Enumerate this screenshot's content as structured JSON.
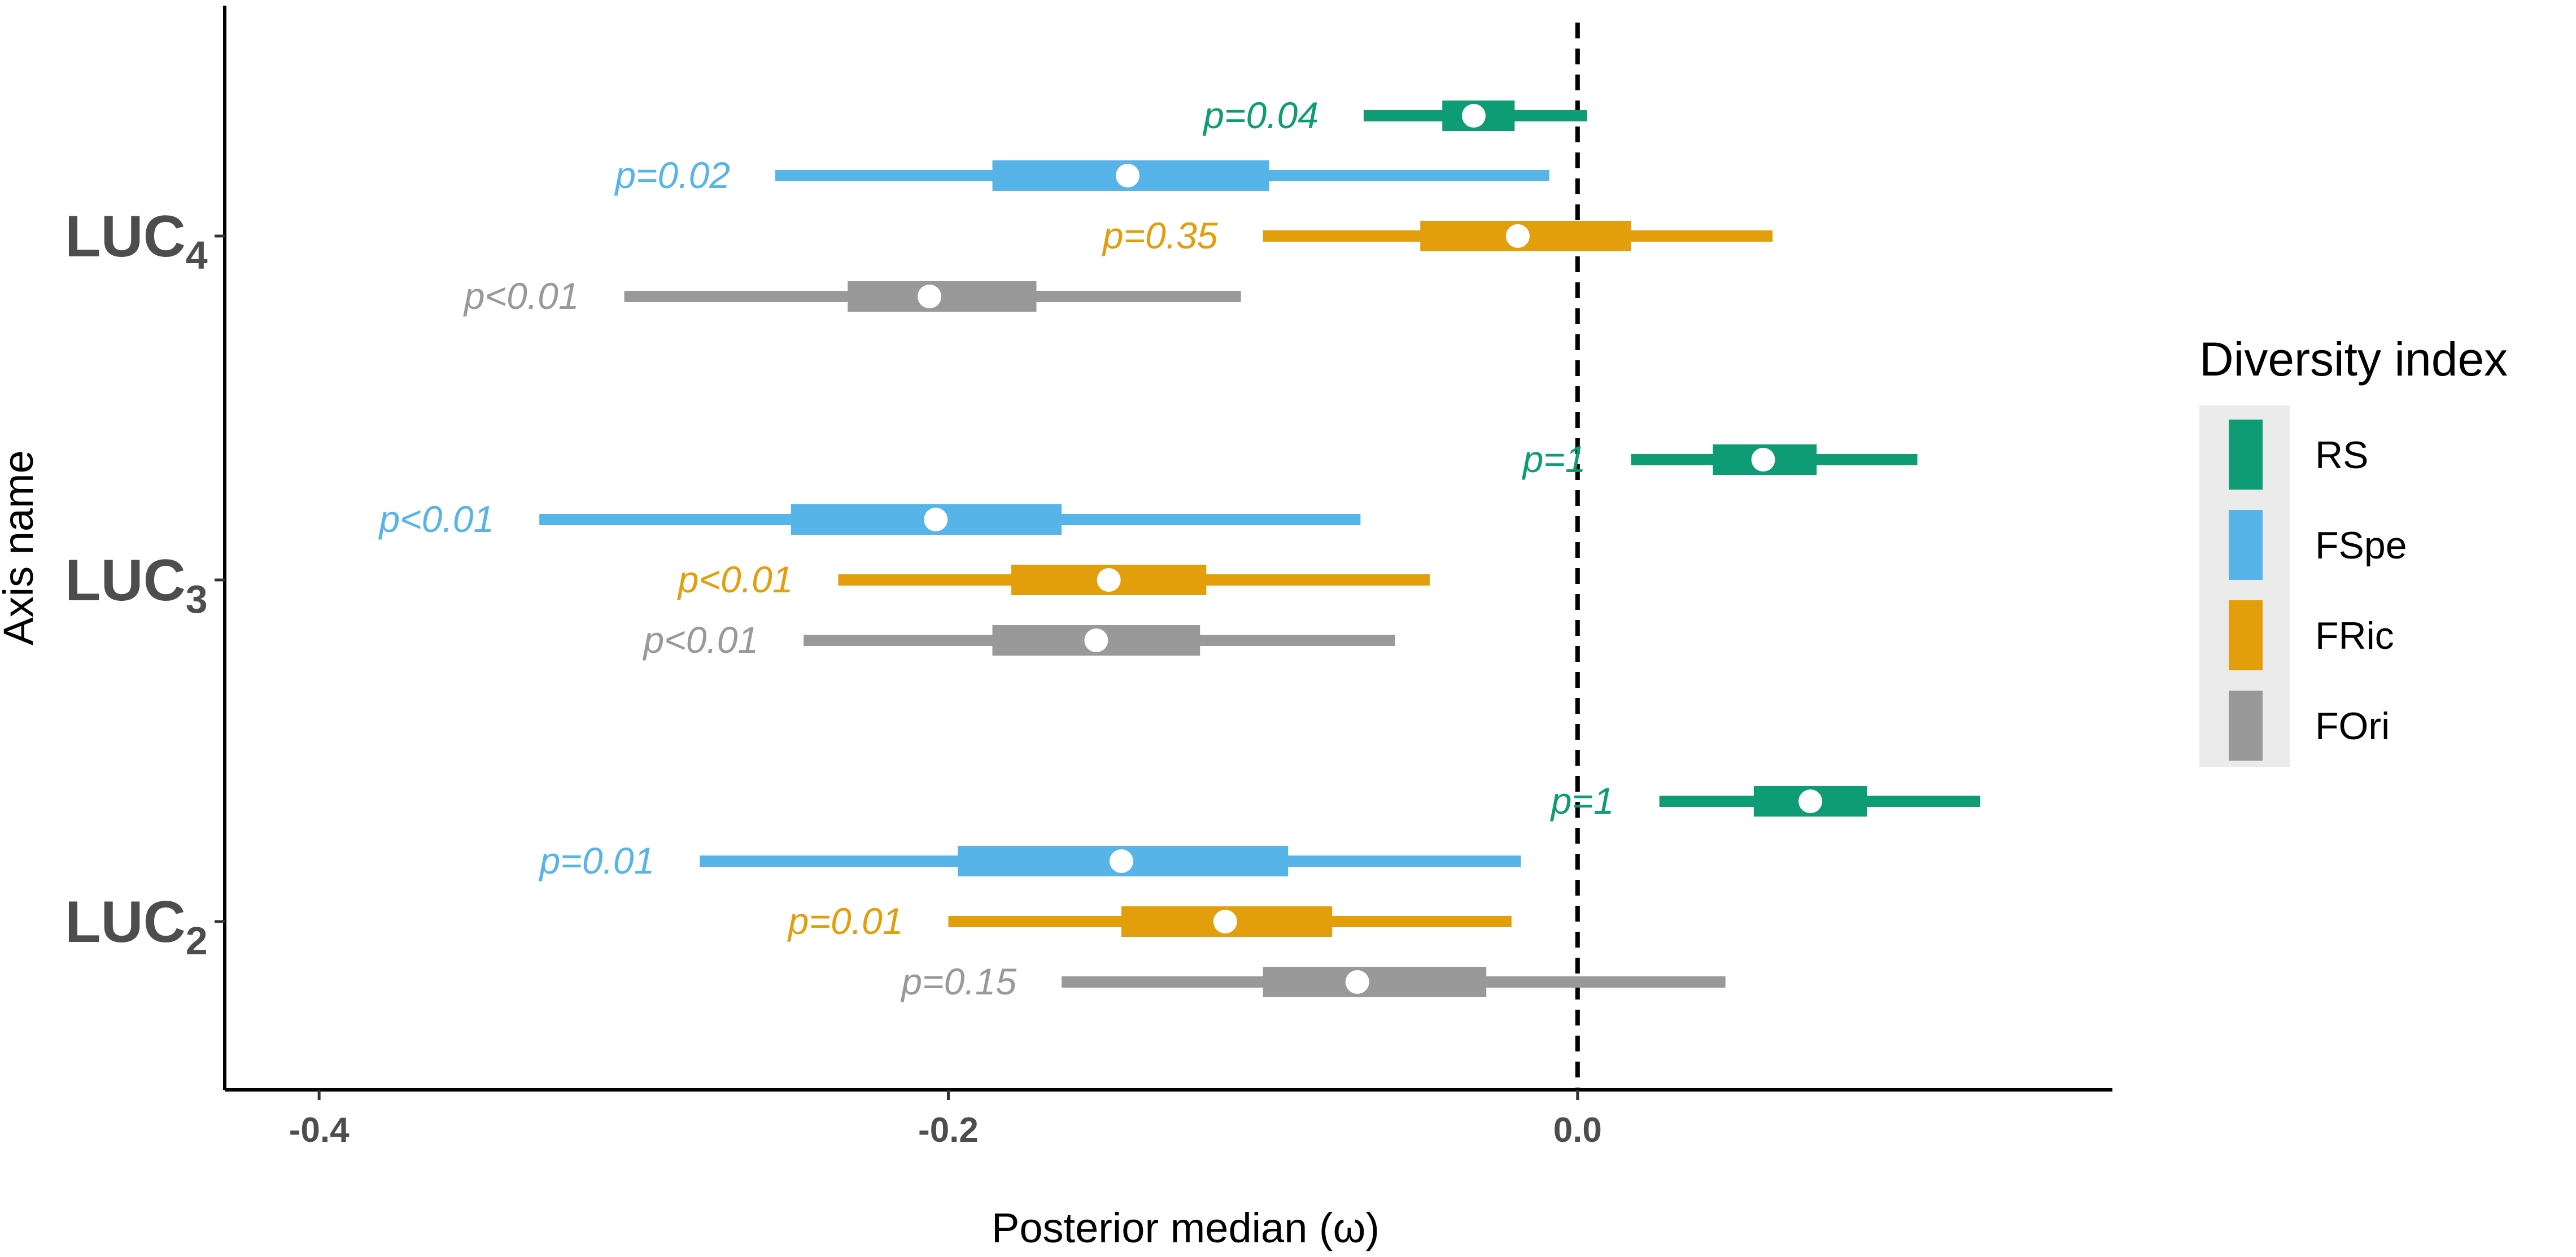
{
  "chart_data": {
    "type": "interval",
    "title": "",
    "xlabel": "Posterior median (ω)",
    "ylabel": "Axis name",
    "xlim": [
      -0.43,
      0.17
    ],
    "xticks": [
      -0.4,
      -0.2,
      0.0
    ],
    "xtick_labels": [
      "-0.4",
      "-0.2",
      "0.0"
    ],
    "reference_line": 0.0,
    "grid": false,
    "legend": {
      "title": "Diversity index",
      "placement": "right",
      "entries": [
        {
          "name": "RS",
          "color": "#0e9c75"
        },
        {
          "name": "FSpe",
          "color": "#56b4e9"
        },
        {
          "name": "FRic",
          "color": "#e39e0b"
        },
        {
          "name": "FOri",
          "color": "#999999"
        }
      ]
    },
    "categories": [
      {
        "name": "LUC",
        "subscript": "4"
      },
      {
        "name": "LUC",
        "subscript": "3"
      },
      {
        "name": "LUC",
        "subscript": "2"
      }
    ],
    "series": [
      {
        "name": "RS",
        "color": "#0e9c75",
        "data": [
          {
            "category": 0,
            "median": -0.033,
            "inner": [
              -0.043,
              -0.02
            ],
            "outer": [
              -0.068,
              0.003
            ],
            "p_label": "p=0.04"
          },
          {
            "category": 1,
            "median": 0.059,
            "inner": [
              0.043,
              0.076
            ],
            "outer": [
              0.017,
              0.108
            ],
            "p_label": "p=1"
          },
          {
            "category": 2,
            "median": 0.074,
            "inner": [
              0.056,
              0.092
            ],
            "outer": [
              0.026,
              0.128
            ],
            "p_label": "p=1"
          }
        ]
      },
      {
        "name": "FSpe",
        "color": "#56b4e9",
        "data": [
          {
            "category": 0,
            "median": -0.143,
            "inner": [
              -0.186,
              -0.098
            ],
            "outer": [
              -0.255,
              -0.009
            ],
            "p_label": "p=0.02"
          },
          {
            "category": 1,
            "median": -0.204,
            "inner": [
              -0.25,
              -0.164
            ],
            "outer": [
              -0.33,
              -0.069
            ],
            "p_label": "p<0.01"
          },
          {
            "category": 2,
            "median": -0.145,
            "inner": [
              -0.197,
              -0.092
            ],
            "outer": [
              -0.279,
              -0.018
            ],
            "p_label": "p=0.01"
          }
        ]
      },
      {
        "name": "FRic",
        "color": "#e39e0b",
        "data": [
          {
            "category": 0,
            "median": -0.019,
            "inner": [
              -0.05,
              0.017
            ],
            "outer": [
              -0.1,
              0.062
            ],
            "p_label": "p=0.35"
          },
          {
            "category": 1,
            "median": -0.149,
            "inner": [
              -0.18,
              -0.118
            ],
            "outer": [
              -0.235,
              -0.047
            ],
            "p_label": "p<0.01"
          },
          {
            "category": 2,
            "median": -0.112,
            "inner": [
              -0.145,
              -0.078
            ],
            "outer": [
              -0.2,
              -0.021
            ],
            "p_label": "p=0.01"
          }
        ]
      },
      {
        "name": "FOri",
        "color": "#999999",
        "data": [
          {
            "category": 0,
            "median": -0.206,
            "inner": [
              -0.232,
              -0.172
            ],
            "outer": [
              -0.303,
              -0.107
            ],
            "p_label": "p<0.01"
          },
          {
            "category": 1,
            "median": -0.153,
            "inner": [
              -0.186,
              -0.12
            ],
            "outer": [
              -0.246,
              -0.058
            ],
            "p_label": "p<0.01"
          },
          {
            "category": 2,
            "median": -0.07,
            "inner": [
              -0.1,
              -0.029
            ],
            "outer": [
              -0.164,
              0.047
            ],
            "p_label": "p=0.15"
          }
        ]
      }
    ]
  }
}
